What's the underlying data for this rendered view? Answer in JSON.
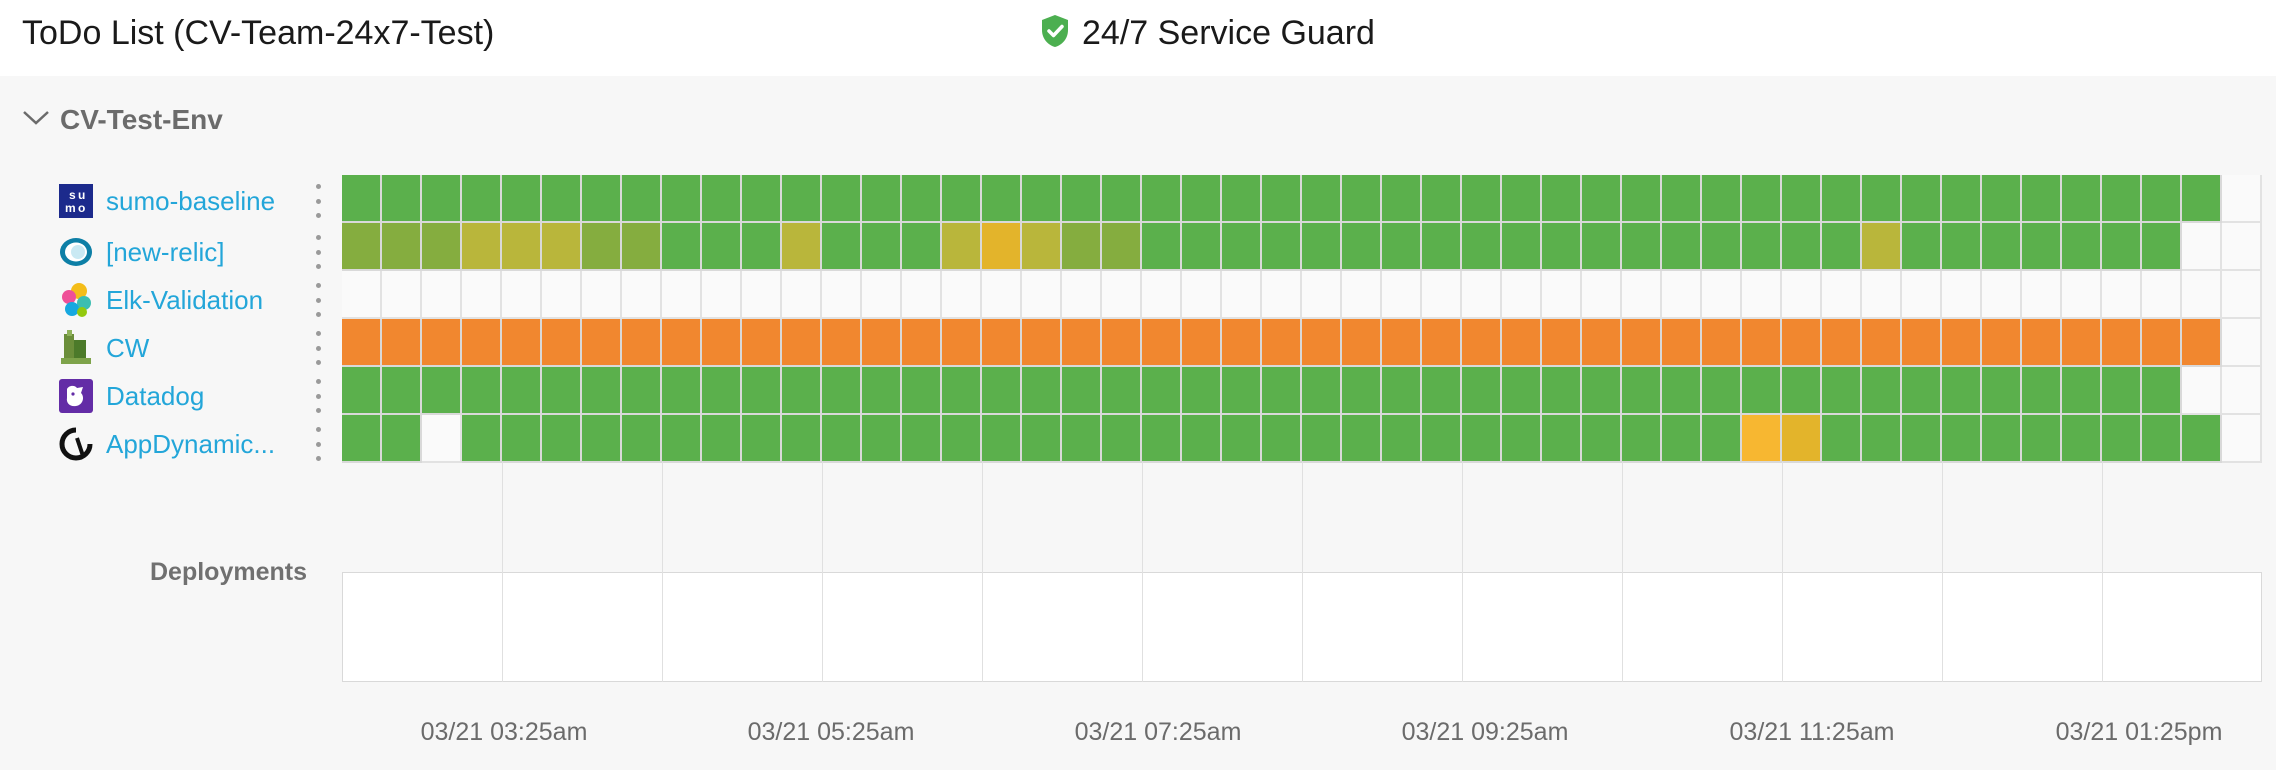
{
  "header": {
    "title": "ToDo List (CV-Team-24x7-Test)",
    "guard_label": "24/7 Service Guard",
    "guard_icon": "shield-check-icon"
  },
  "environment": {
    "name": "CV-Test-Env",
    "expanded": true
  },
  "colors": {
    "green": "#5bb04c",
    "olive_green": "#85ad3f",
    "olive": "#b9b63b",
    "yellow": "#e3b42b",
    "orange": "#f1872f",
    "light_orange": "#f7b731",
    "empty": "#fafafa",
    "link": "#23a6d9"
  },
  "services": [
    {
      "name": "sumo-baseline",
      "icon": "sumo-logic-icon",
      "cells": "GGGGGGGGGGGGGGGGGGGGGGGGGGGGGGGGGGGGGGGGGGGGGGG_"
    },
    {
      "name": "[new-relic]",
      "icon": "new-relic-icon",
      "cells": "AAAOOOAAGGGOGGGOYOAAGGGGGGGGGGGGGGGGGGOGGGGGGG__"
    },
    {
      "name": "Elk-Validation",
      "icon": "elastic-icon",
      "cells": "________________________________________________"
    },
    {
      "name": "CW",
      "icon": "cloudwatch-icon",
      "cells": "RRRRRRRRRRRRRRRRRRRRRRRRRRRRRRRRRRRRRRRRRRRRRRR_"
    },
    {
      "name": "Datadog",
      "icon": "datadog-icon",
      "cells": "GGGGGGGGGGGGGGGGGGGGGGGGGGGGGGGGGGGGGGGGGGGGGG__"
    },
    {
      "name": "AppDynamic...",
      "icon": "appdynamics-icon",
      "cells": "GG_GGGGGGGGGGGGGGGGGGGGGGGGGGGGGGGGLYGGGGGGGGGG_"
    }
  ],
  "deployments_label": "Deployments",
  "time_axis": [
    "03/21 03:25am",
    "03/21 05:25am",
    "03/21 07:25am",
    "03/21 09:25am",
    "03/21 11:25am",
    "03/21 01:25pm"
  ]
}
